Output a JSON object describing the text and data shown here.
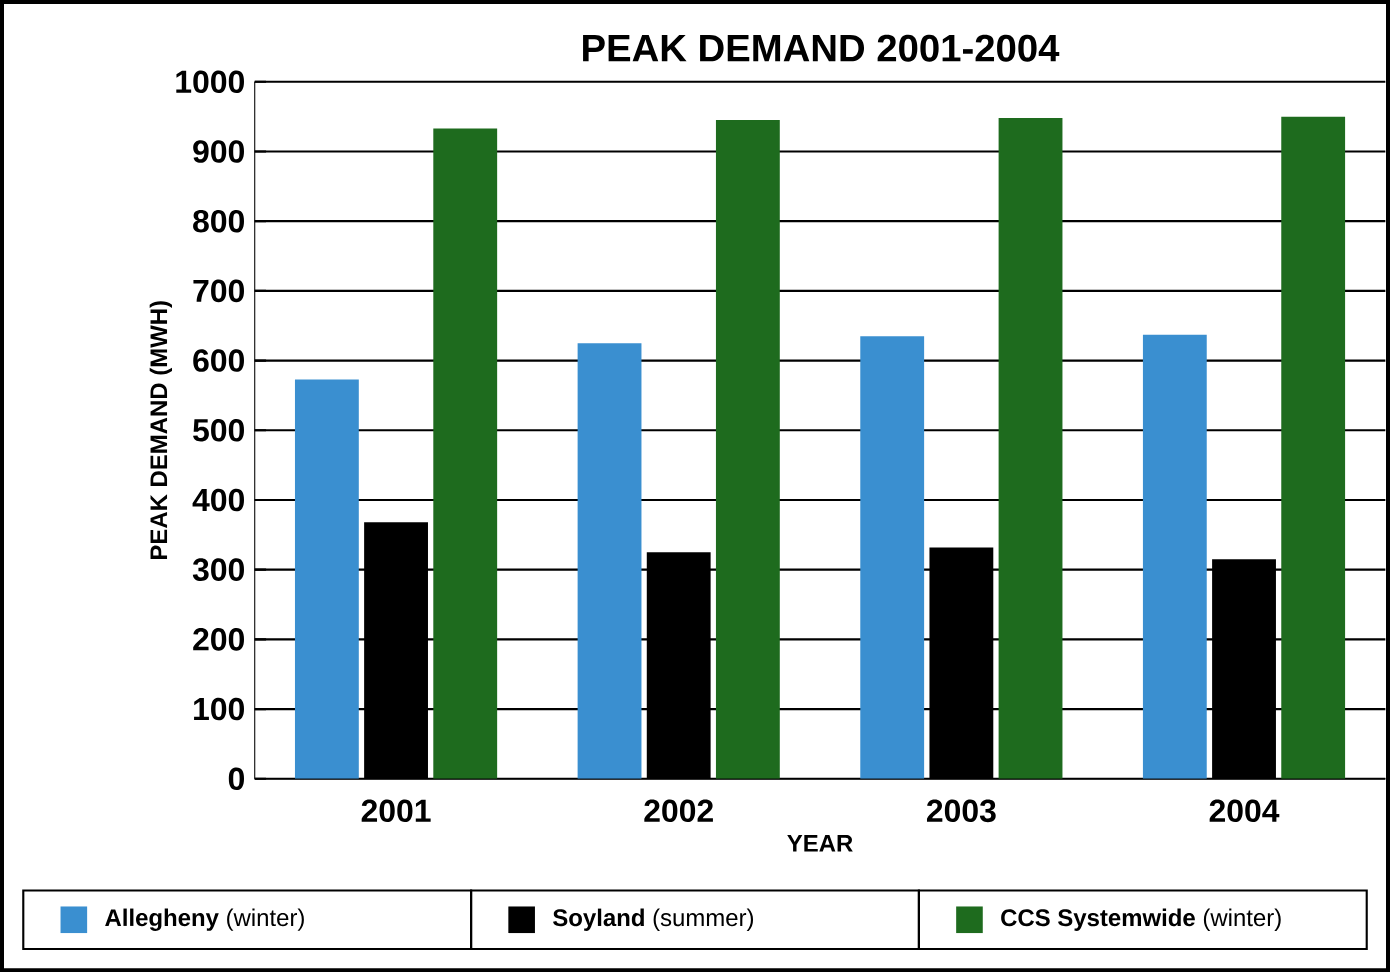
{
  "chart_data": {
    "type": "bar",
    "title": "PEAK DEMAND 2001-2004",
    "xlabel": "YEAR",
    "ylabel": "PEAK DEMAND (MWH)",
    "categories": [
      "2001",
      "2002",
      "2003",
      "2004"
    ],
    "series": [
      {
        "name": "**Allegheny** (winter)",
        "color": "#3a8fd0",
        "values": [
          573,
          625,
          635,
          637
        ]
      },
      {
        "name": "**Soyland** (summer)",
        "color": "#000000",
        "values": [
          368,
          325,
          332,
          315
        ]
      },
      {
        "name": "**CCS Systemwide** (winter)",
        "color": "#1e6b1e",
        "values": [
          933,
          945,
          948,
          950
        ]
      }
    ],
    "ylim": [
      0,
      1000
    ],
    "yticks": [
      0,
      100,
      200,
      300,
      400,
      500,
      600,
      700,
      800,
      900,
      1000
    ],
    "grid": "y",
    "legend": "bottom"
  }
}
